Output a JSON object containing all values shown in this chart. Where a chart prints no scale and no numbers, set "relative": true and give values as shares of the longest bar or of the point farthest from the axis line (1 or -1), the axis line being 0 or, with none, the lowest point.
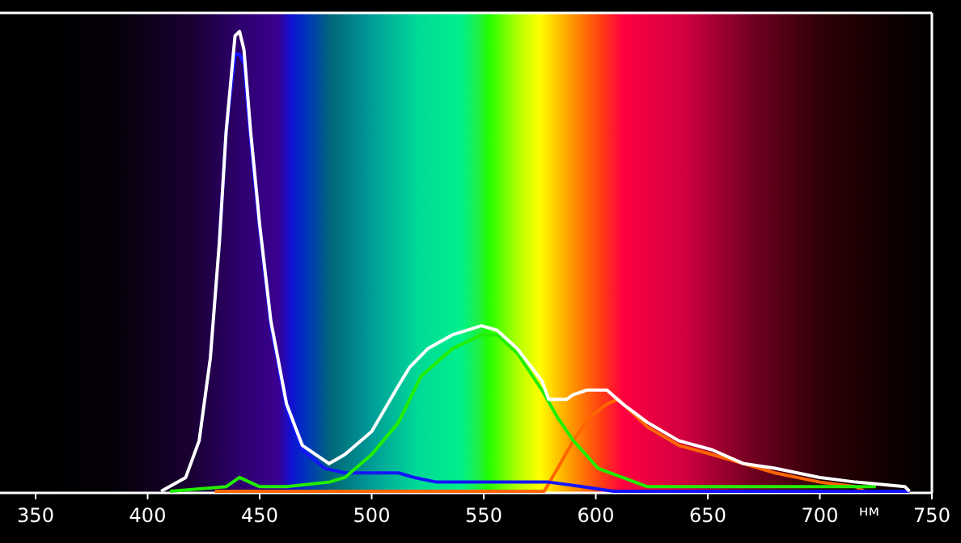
{
  "chart_data": {
    "type": "line",
    "relative": true,
    "xlabel": "нм",
    "xlim": [
      350,
      750
    ],
    "xticks": [
      350,
      400,
      450,
      500,
      550,
      600,
      650,
      700,
      750
    ],
    "grid": false,
    "marker": "none",
    "line_style": "solid",
    "series": [
      {
        "color": "#ff6600",
        "x": [
          430,
          577,
          583,
          590,
          597,
          605,
          610,
          623,
          637,
          652,
          666,
          680,
          700,
          716,
          720
        ],
        "values": [
          0,
          0,
          0.05,
          0.11,
          0.16,
          0.19,
          0.2,
          0.14,
          0.1,
          0.08,
          0.06,
          0.04,
          0.02,
          0.01,
          0
        ]
      },
      {
        "color": "#1414ff",
        "x": [
          432,
          435,
          439,
          441,
          443,
          446,
          450,
          455,
          462,
          469,
          479,
          488,
          500,
          507,
          512,
          519,
          529,
          551,
          565,
          579,
          594,
          608,
          740
        ],
        "values": [
          0.54,
          0.78,
          0.95,
          0.95,
          0.93,
          0.76,
          0.57,
          0.36,
          0.18,
          0.09,
          0.05,
          0.04,
          0.04,
          0.04,
          0.04,
          0.03,
          0.02,
          0.02,
          0.02,
          0.02,
          0.01,
          0,
          0
        ]
      },
      {
        "color": "#22ee00",
        "x": [
          410,
          435,
          441,
          450,
          462,
          481,
          488,
          500,
          512,
          522,
          536,
          549,
          556,
          565,
          576,
          583,
          590,
          601,
          612,
          623,
          634,
          652,
          725
        ],
        "values": [
          0,
          0.01,
          0.03,
          0.01,
          0.01,
          0.02,
          0.03,
          0.08,
          0.15,
          0.25,
          0.31,
          0.34,
          0.34,
          0.3,
          0.22,
          0.16,
          0.11,
          0.05,
          0.03,
          0.01,
          0.01,
          0.01,
          0.01
        ]
      },
      {
        "color": "#ffffff",
        "x": [
          406,
          417,
          423,
          428,
          432,
          435,
          439,
          441,
          443,
          446,
          450,
          455,
          462,
          469,
          481,
          488,
          500,
          512,
          517,
          525,
          536,
          549,
          556,
          565,
          576,
          579,
          587,
          590,
          596,
          605,
          612,
          623,
          637,
          652,
          666,
          680,
          700,
          716,
          738,
          740
        ],
        "values": [
          0,
          0.03,
          0.11,
          0.29,
          0.54,
          0.78,
          0.99,
          1,
          0.96,
          0.78,
          0.58,
          0.37,
          0.19,
          0.1,
          0.06,
          0.08,
          0.13,
          0.23,
          0.27,
          0.31,
          0.34,
          0.36,
          0.35,
          0.31,
          0.24,
          0.2,
          0.2,
          0.21,
          0.22,
          0.22,
          0.19,
          0.15,
          0.11,
          0.09,
          0.06,
          0.05,
          0.03,
          0.02,
          0.01,
          0
        ]
      }
    ]
  }
}
